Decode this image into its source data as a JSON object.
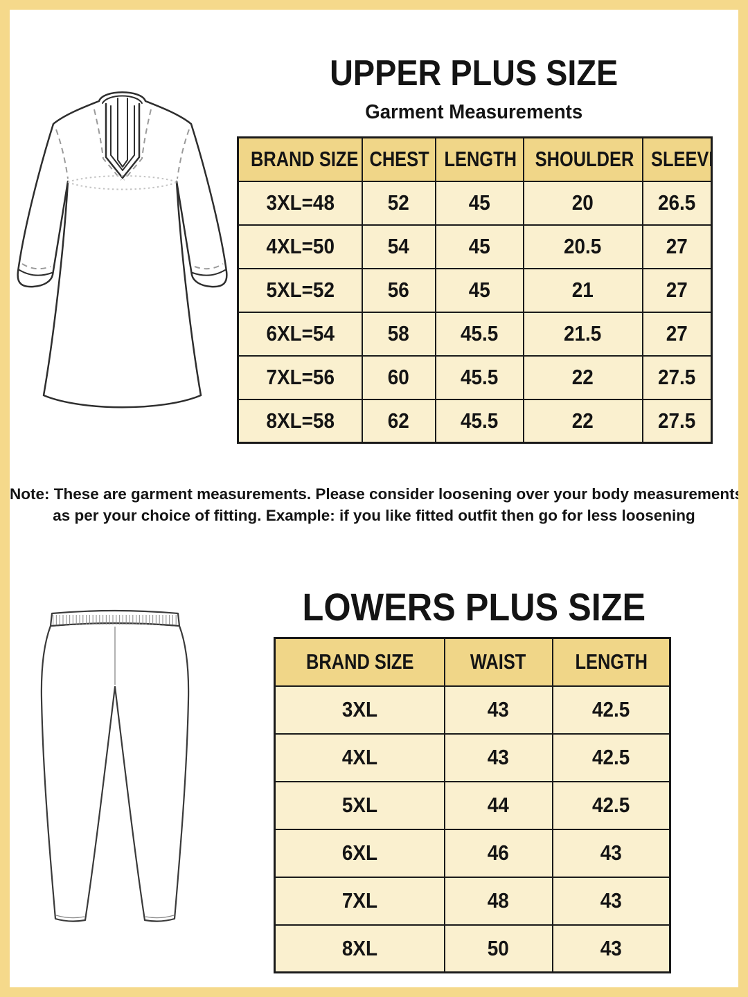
{
  "page": {
    "border_color": "#F5D98B",
    "background": "#ffffff"
  },
  "colors": {
    "table_header_bg": "#F0D688",
    "table_row_bg": "#FAF0CF",
    "table_line": "#1a1a1a",
    "text": "#141414",
    "sketch_line": "#2e2e2e",
    "sketch_dash": "#9a9a9a"
  },
  "upper": {
    "title": "UPPER PLUS SIZE",
    "subtitle": "Garment Measurements",
    "illustration": "kurta-line-art",
    "table": {
      "columns": [
        "BRAND SIZE",
        "CHEST",
        "LENGTH",
        "SHOULDER",
        "SLEEVE"
      ],
      "rows": [
        [
          "3XL=48",
          "52",
          "45",
          "20",
          "26.5"
        ],
        [
          "4XL=50",
          "54",
          "45",
          "20.5",
          "27"
        ],
        [
          "5XL=52",
          "56",
          "45",
          "21",
          "27"
        ],
        [
          "6XL=54",
          "58",
          "45.5",
          "21.5",
          "27"
        ],
        [
          "7XL=56",
          "60",
          "45.5",
          "22",
          "27.5"
        ],
        [
          "8XL=58",
          "62",
          "45.5",
          "22",
          "27.5"
        ]
      ]
    }
  },
  "note": {
    "line1": "Note: These are garment measurements. Please consider loosening over your body measurements",
    "line2": "as per your choice of fitting. Example: if you like fitted outfit then go for less loosening"
  },
  "lower": {
    "title": "LOWERS PLUS SIZE",
    "illustration": "pants-line-art",
    "table": {
      "columns": [
        "BRAND SIZE",
        "WAIST",
        "LENGTH"
      ],
      "rows": [
        [
          "3XL",
          "43",
          "42.5"
        ],
        [
          "4XL",
          "43",
          "42.5"
        ],
        [
          "5XL",
          "44",
          "42.5"
        ],
        [
          "6XL",
          "46",
          "43"
        ],
        [
          "7XL",
          "48",
          "43"
        ],
        [
          "8XL",
          "50",
          "43"
        ]
      ]
    }
  }
}
